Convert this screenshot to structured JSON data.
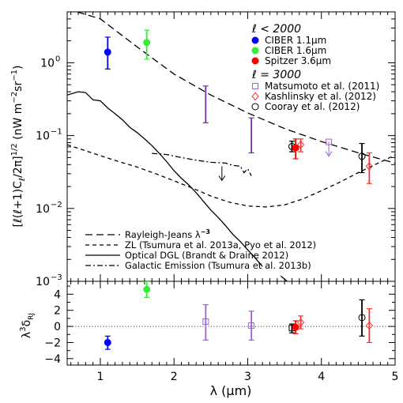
{
  "chart_data": [
    {
      "panel": "top",
      "type": "scatter",
      "ylabel_parts": [
        "[",
        "ℓ",
        "(",
        "ℓ",
        "+1)C",
        "ℓ",
        "/2π]",
        "1/2",
        "  (nW m",
        "−2",
        "sr",
        "−1",
        ")"
      ],
      "xlim": [
        0.55,
        5.0
      ],
      "ylim": [
        0.001,
        5.0
      ],
      "yscale": "log",
      "ytick_labels": [
        {
          "base": "10",
          "exp": "0",
          "value": 1.0
        },
        {
          "base": "10",
          "exp": "−1",
          "value": 0.1
        },
        {
          "base": "10",
          "exp": "−2",
          "value": 0.01
        },
        {
          "base": "10",
          "exp": "−3",
          "value": 0.001
        }
      ],
      "legend_top": {
        "position": "top-right",
        "group1_header": "ℓ < 2000",
        "group2_header": "ℓ = 3000",
        "entries": [
          {
            "label": "CIBER 1.1μm",
            "marker": "filled-circle",
            "color": "#0000ff"
          },
          {
            "label": "CIBER 1.6μm",
            "marker": "filled-circle",
            "color": "#33ee33"
          },
          {
            "label": "Spitzer 3.6μm",
            "marker": "filled-circle",
            "color": "#ff0000"
          },
          {
            "label": "Matsumoto et al. (2011)",
            "marker": "open-square",
            "color": "#9966cc"
          },
          {
            "label": "Kashlinsky et al. (2012)",
            "marker": "open-diamond",
            "color": "#ff3333"
          },
          {
            "label": "Cooray et al. (2012)",
            "marker": "open-circle",
            "color": "#000000"
          }
        ]
      },
      "legend_bottom": {
        "position": "bottom-left",
        "entries": [
          {
            "label": "Rayleigh-Jeans λ",
            "sup": "−3",
            "dash": "dashed-long"
          },
          {
            "label": "ZL (Tsumura et al. 2013a, Pyo et al. 2012)",
            "dash": "dashed-short"
          },
          {
            "label": "Optical DGL (Brandt & Draine 2012)",
            "dash": "solid"
          },
          {
            "label": "Galactic Emission (Tsumura et al. 2013b)",
            "dash": "dash-dot"
          }
        ]
      },
      "points": [
        {
          "name": "CIBER 1.1μm",
          "x": 1.1,
          "y": 1.4,
          "ylo": 0.82,
          "yhi": 2.25,
          "marker": "filled-circle",
          "color": "#0000ff"
        },
        {
          "name": "CIBER 1.6μm",
          "x": 1.63,
          "y": 1.9,
          "ylo": 1.12,
          "yhi": 2.8,
          "marker": "filled-circle",
          "color": "#33ee33"
        },
        {
          "x": 2.43,
          "y": 0.28,
          "ylo": 0.15,
          "yhi": 0.48,
          "marker": "none",
          "color": "#7030a0"
        },
        {
          "x": 3.05,
          "y": 0.11,
          "ylo": 0.058,
          "yhi": 0.175,
          "marker": "none",
          "color": "#7030a0"
        },
        {
          "x": 3.6,
          "y": 0.071,
          "ylo": 0.06,
          "yhi": 0.084,
          "marker": "open-circle",
          "color": "#000000"
        },
        {
          "x": 3.65,
          "y": 0.068,
          "ylo": 0.048,
          "yhi": 0.09,
          "marker": "filled-circle",
          "color": "#ff0000"
        },
        {
          "x": 3.72,
          "y": 0.075,
          "ylo": 0.06,
          "yhi": 0.09,
          "marker": "open-diamond",
          "color": "#ff3333"
        },
        {
          "x": 4.55,
          "y": 0.052,
          "ylo": 0.031,
          "yhi": 0.078,
          "marker": "open-circle",
          "color": "#000000"
        },
        {
          "x": 4.65,
          "y": 0.038,
          "ylo": 0.022,
          "yhi": 0.058,
          "marker": "open-diamond",
          "color": "#ff3333"
        }
      ],
      "upper_limits": [
        {
          "x": 4.1,
          "y": 0.082,
          "marker": "open-square",
          "color": "#9966cc"
        },
        {
          "x": 2.65,
          "y": 0.038,
          "marker": "none",
          "color": "#000000"
        }
      ],
      "curves": [
        {
          "name": "Rayleigh-Jeans λ−3",
          "dash": "dashed-long",
          "x": [
            0.55,
            1.0,
            1.5,
            2.0,
            2.5,
            3.0,
            3.5,
            4.0,
            4.5,
            5.0
          ],
          "y": [
            5.5,
            4.0,
            1.65,
            0.7,
            0.36,
            0.205,
            0.125,
            0.083,
            0.058,
            0.042
          ]
        },
        {
          "name": "ZL (Tsumura et al. 2013a, Pyo et al. 2012)",
          "dash": "dashed-short",
          "x": [
            0.55,
            1.0,
            1.25,
            1.5,
            1.75,
            2.0,
            2.25,
            2.5,
            2.75,
            3.0,
            3.25,
            3.5,
            3.75,
            4.0,
            4.25,
            4.5,
            4.75,
            5.0
          ],
          "y": [
            0.075,
            0.053,
            0.044,
            0.037,
            0.03,
            0.024,
            0.019,
            0.0148,
            0.0122,
            0.0108,
            0.0105,
            0.0112,
            0.0135,
            0.0175,
            0.023,
            0.031,
            0.041,
            0.054
          ]
        },
        {
          "name": "Optical DGL (Brandt & Draine 2012)",
          "dash": "solid",
          "x": [
            0.55,
            0.7,
            0.8,
            0.9,
            1.0,
            1.1,
            1.2,
            1.3,
            1.4,
            1.5,
            1.6,
            1.7,
            1.8,
            1.9,
            2.0,
            2.1,
            2.2,
            2.3,
            2.4,
            2.5,
            2.6,
            2.7,
            2.8,
            2.9,
            3.0,
            3.1,
            3.2
          ],
          "y": [
            0.36,
            0.4,
            0.39,
            0.31,
            0.3,
            0.24,
            0.2,
            0.165,
            0.13,
            0.11,
            0.09,
            0.073,
            0.057,
            0.044,
            0.033,
            0.026,
            0.021,
            0.0165,
            0.0125,
            0.0095,
            0.0075,
            0.0058,
            0.0044,
            0.0035,
            0.0027,
            0.0021,
            0.0016
          ]
        },
        {
          "name": "Galactic Emission (Tsumura et al. 2013b)",
          "dash": "dash-dot",
          "x": [
            1.7,
            1.9,
            2.1,
            2.3,
            2.5,
            2.7,
            2.8,
            2.9,
            2.95,
            3.0,
            3.05
          ],
          "y": [
            0.057,
            0.055,
            0.05,
            0.046,
            0.043,
            0.042,
            0.039,
            0.038,
            0.031,
            0.035,
            0.028
          ]
        },
        {
          "name": "steep-line",
          "dash": "solid",
          "x": [
            3.45,
            3.62
          ],
          "y": [
            0.00118,
            0.00085
          ]
        }
      ]
    },
    {
      "panel": "bottom",
      "type": "scatter",
      "xlabel": "λ (μm)",
      "ylabel_parts": [
        "λ",
        "3",
        "δ",
        "RJ"
      ],
      "xlim": [
        0.55,
        5.0
      ],
      "ylim": [
        -4.8,
        5.6
      ],
      "xticks": [
        1,
        2,
        3,
        4,
        5
      ],
      "yticks": [
        -4,
        -2,
        0,
        2,
        4
      ],
      "reference_line": {
        "y": 0,
        "style": "dotted"
      },
      "points": [
        {
          "x": 1.1,
          "y": -2.0,
          "ylo": -2.85,
          "yhi": -1.2,
          "marker": "filled-circle",
          "color": "#0000ff"
        },
        {
          "x": 1.63,
          "y": 4.6,
          "ylo": 3.6,
          "yhi": 5.6,
          "marker": "filled-circle",
          "color": "#33ee33"
        },
        {
          "x": 2.43,
          "y": 0.6,
          "ylo": -1.7,
          "yhi": 2.7,
          "marker": "open-square",
          "color": "#9966cc"
        },
        {
          "x": 3.05,
          "y": 0.1,
          "ylo": -1.7,
          "yhi": 1.9,
          "marker": "open-square",
          "color": "#9966cc"
        },
        {
          "x": 3.6,
          "y": -0.2,
          "ylo": -0.8,
          "yhi": 0.3,
          "marker": "open-square",
          "color": "#000000"
        },
        {
          "x": 3.65,
          "y": -0.1,
          "ylo": -0.9,
          "yhi": 0.7,
          "marker": "filled-circle",
          "color": "#ff0000"
        },
        {
          "x": 3.72,
          "y": 0.5,
          "ylo": -0.3,
          "yhi": 1.3,
          "marker": "open-diamond",
          "color": "#ff3333"
        },
        {
          "x": 4.55,
          "y": 1.1,
          "ylo": -1.2,
          "yhi": 3.3,
          "marker": "open-circle",
          "color": "#000000"
        },
        {
          "x": 4.65,
          "y": 0.1,
          "ylo": -2.0,
          "yhi": 2.2,
          "marker": "open-diamond",
          "color": "#ff3333"
        }
      ]
    }
  ]
}
